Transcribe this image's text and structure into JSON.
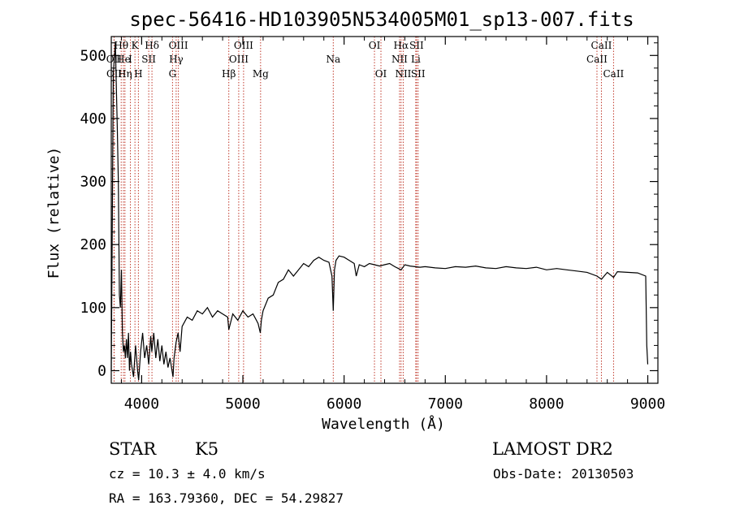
{
  "chart_data": {
    "type": "line",
    "title": "spec-56416-HD103905N534005M01_sp13-007.fits",
    "xlabel": "Wavelength (Å)",
    "ylabel": "Flux (relative)",
    "xlim": [
      3700,
      9100
    ],
    "ylim": [
      -20,
      530
    ],
    "xticks": [
      4000,
      5000,
      6000,
      7000,
      8000,
      9000
    ],
    "yticks": [
      0,
      100,
      200,
      300,
      400,
      500
    ],
    "grid": false,
    "series": [
      {
        "x": [
          3700,
          3720,
          3740,
          3760,
          3770,
          3780,
          3790,
          3800,
          3810,
          3820,
          3830,
          3840,
          3850,
          3860,
          3870,
          3880,
          3890,
          3900,
          3920,
          3940,
          3960,
          3970,
          3990,
          4010,
          4030,
          4050,
          4070,
          4090,
          4100,
          4120,
          4140,
          4160,
          4180,
          4200,
          4220,
          4240,
          4260,
          4280,
          4300,
          4310,
          4320,
          4340,
          4360,
          4380,
          4400,
          4450,
          4500,
          4550,
          4600,
          4650,
          4700,
          4750,
          4800,
          4850,
          4861,
          4900,
          4950,
          5000,
          5050,
          5100,
          5150,
          5172,
          5183,
          5200,
          5250,
          5300,
          5350,
          5400,
          5450,
          5500,
          5550,
          5600,
          5650,
          5700,
          5750,
          5800,
          5850,
          5880,
          5893,
          5905,
          5920,
          5950,
          6000,
          6050,
          6100,
          6120,
          6150,
          6200,
          6250,
          6300,
          6350,
          6400,
          6450,
          6500,
          6563,
          6600,
          6650,
          6700,
          6750,
          6800,
          6900,
          7000,
          7100,
          7200,
          7300,
          7400,
          7500,
          7600,
          7700,
          7800,
          7900,
          8000,
          8100,
          8200,
          8300,
          8400,
          8498,
          8542,
          8600,
          8662,
          8700,
          8800,
          8900,
          8980,
          8990,
          9000
        ],
        "y": [
          0,
          470,
          520,
          380,
          300,
          120,
          100,
          160,
          60,
          30,
          40,
          20,
          50,
          20,
          60,
          0,
          30,
          10,
          -10,
          40,
          0,
          -15,
          30,
          60,
          20,
          40,
          10,
          55,
          30,
          60,
          20,
          50,
          15,
          40,
          10,
          30,
          5,
          20,
          0,
          -10,
          20,
          45,
          60,
          30,
          70,
          85,
          80,
          95,
          90,
          100,
          85,
          95,
          90,
          85,
          65,
          90,
          80,
          95,
          85,
          90,
          75,
          60,
          80,
          95,
          115,
          120,
          140,
          145,
          160,
          150,
          160,
          170,
          165,
          175,
          180,
          175,
          172,
          150,
          95,
          160,
          175,
          182,
          180,
          175,
          170,
          150,
          168,
          165,
          170,
          168,
          166,
          168,
          170,
          165,
          160,
          168,
          166,
          165,
          164,
          165,
          163,
          162,
          165,
          164,
          166,
          163,
          162,
          165,
          163,
          162,
          164,
          160,
          162,
          160,
          158,
          156,
          150,
          145,
          156,
          148,
          157,
          156,
          155,
          150,
          40,
          10
        ]
      }
    ],
    "line_markers": [
      {
        "label": "Hθ",
        "x": 3798,
        "row": 0
      },
      {
        "label": "OII",
        "x": 3727,
        "row": 1
      },
      {
        "label": "OII",
        "x": 3729,
        "row": 2
      },
      {
        "label": "He",
        "x": 3820,
        "row": 1
      },
      {
        "label": "Hη",
        "x": 3835,
        "row": 2
      },
      {
        "label": "K",
        "x": 3934,
        "row": 0
      },
      {
        "label": "H",
        "x": 3968,
        "row": 2
      },
      {
        "label": "I",
        "x": 3889,
        "row": 1
      },
      {
        "label": "SII",
        "x": 4070,
        "row": 1
      },
      {
        "label": "Hδ",
        "x": 4102,
        "row": 0
      },
      {
        "label": "OIII",
        "x": 4363,
        "row": 0
      },
      {
        "label": "Hγ",
        "x": 4341,
        "row": 1
      },
      {
        "label": "G",
        "x": 4305,
        "row": 2
      },
      {
        "label": "Hβ",
        "x": 4861,
        "row": 2
      },
      {
        "label": "OIII",
        "x": 4959,
        "row": 1
      },
      {
        "label": "OIII",
        "x": 5007,
        "row": 0
      },
      {
        "label": "Mg",
        "x": 5175,
        "row": 2
      },
      {
        "label": "Na",
        "x": 5893,
        "row": 1
      },
      {
        "label": "OI",
        "x": 6300,
        "row": 0
      },
      {
        "label": "OI",
        "x": 6364,
        "row": 2
      },
      {
        "label": "Hα",
        "x": 6563,
        "row": 0
      },
      {
        "label": "NII",
        "x": 6548,
        "row": 1
      },
      {
        "label": "NII",
        "x": 6584,
        "row": 2
      },
      {
        "label": "SII",
        "x": 6716,
        "row": 0
      },
      {
        "label": "SII",
        "x": 6731,
        "row": 2
      },
      {
        "label": "Li",
        "x": 6708,
        "row": 1
      },
      {
        "label": "CaII",
        "x": 8542,
        "row": 0
      },
      {
        "label": "CaII",
        "x": 8498,
        "row": 1
      },
      {
        "label": "CaII",
        "x": 8662,
        "row": 2
      }
    ],
    "info": {
      "class_label": "STAR",
      "subclass": "K5",
      "survey": "LAMOST DR2",
      "cz": "cz = 10.3 ± 4.0 km/s",
      "obs_date": "Obs-Date: 20130503",
      "radec": "RA = 163.79360, DEC =  54.29827"
    }
  }
}
